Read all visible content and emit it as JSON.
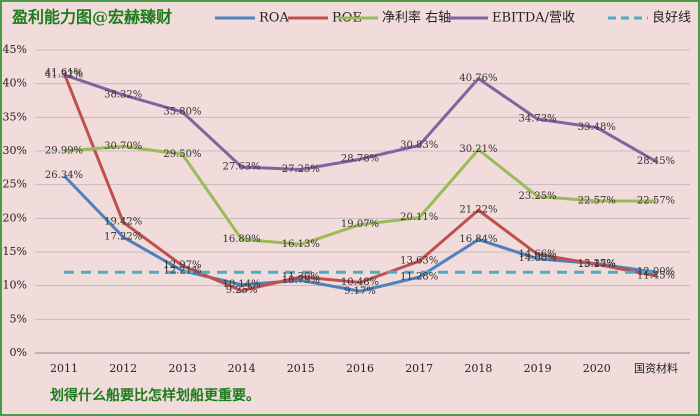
{
  "chart_data": {
    "type": "line",
    "title": "盈利能力图@宏赫臻财",
    "footer": "划得什么船要比怎样划船更重要。",
    "categories": [
      "2011",
      "2012",
      "2013",
      "2014",
      "2015",
      "2016",
      "2017",
      "2018",
      "2019",
      "2020",
      "国资材料"
    ],
    "ylim": [
      0,
      45
    ],
    "yticks": [
      {
        "value": 0,
        "label": "0%"
      },
      {
        "value": 5,
        "label": "5%"
      },
      {
        "value": 10,
        "label": "10%"
      },
      {
        "value": 15,
        "label": "15%"
      },
      {
        "value": 20,
        "label": "20%"
      },
      {
        "value": 25,
        "label": "25%"
      },
      {
        "value": 30,
        "label": "30%"
      },
      {
        "value": 35,
        "label": "35%"
      },
      {
        "value": 40,
        "label": "40%"
      },
      {
        "value": 45,
        "label": "45%"
      }
    ],
    "series": [
      {
        "name": "ROA",
        "color": "#4f81bd",
        "values": [
          26.34,
          17.22,
          12.21,
          10.14,
          10.79,
          9.17,
          11.28,
          16.84,
          14.0,
          13.25,
          12.0
        ],
        "value_labels": [
          "26.34%",
          "17.22%",
          "12.21%",
          "10.14%",
          "10.79%",
          "9.17%",
          "11.28%",
          "16.84%",
          "14.00%",
          "13.25%",
          "12.00%"
        ]
      },
      {
        "name": "ROE",
        "color": "#c0504d",
        "values": [
          41.61,
          19.42,
          12.97,
          9.25,
          11.3,
          10.48,
          13.63,
          21.22,
          14.66,
          13.17,
          11.45
        ],
        "value_labels": [
          "41.61%",
          "19.42%",
          "12.97%",
          "9.25%",
          "11.30%",
          "10.48%",
          "13.63%",
          "21.22%",
          "14.66%",
          "13.17%",
          "11.45%"
        ]
      },
      {
        "name": "净利率 右轴",
        "color": "#9bbb59",
        "values": [
          29.99,
          30.7,
          29.5,
          16.89,
          16.13,
          19.07,
          20.11,
          30.21,
          23.25,
          22.57,
          22.57
        ],
        "value_labels": [
          "29.99%",
          "30.70%",
          "29.50%",
          "16.89%",
          "16.13%",
          "19.07%",
          "20.11%",
          "30.21%",
          "23.25%",
          "22.57%",
          "22.57%"
        ]
      },
      {
        "name": "EBITDA/营收",
        "color": "#8064a2",
        "values": [
          41.32,
          38.32,
          35.8,
          27.63,
          27.25,
          28.78,
          30.83,
          40.76,
          34.73,
          33.48,
          28.45
        ],
        "value_labels": [
          "41.32%",
          "38.32%",
          "35.80%",
          "27.63%",
          "27.25%",
          "28.78%",
          "30.83%",
          "40.76%",
          "34.73%",
          "33.48%",
          "28.45%"
        ]
      },
      {
        "name": "良好线",
        "color": "#4bacc6",
        "dashed": true,
        "values": [
          12,
          12,
          12,
          12,
          12,
          12,
          12,
          12,
          12,
          12,
          12
        ]
      }
    ]
  }
}
